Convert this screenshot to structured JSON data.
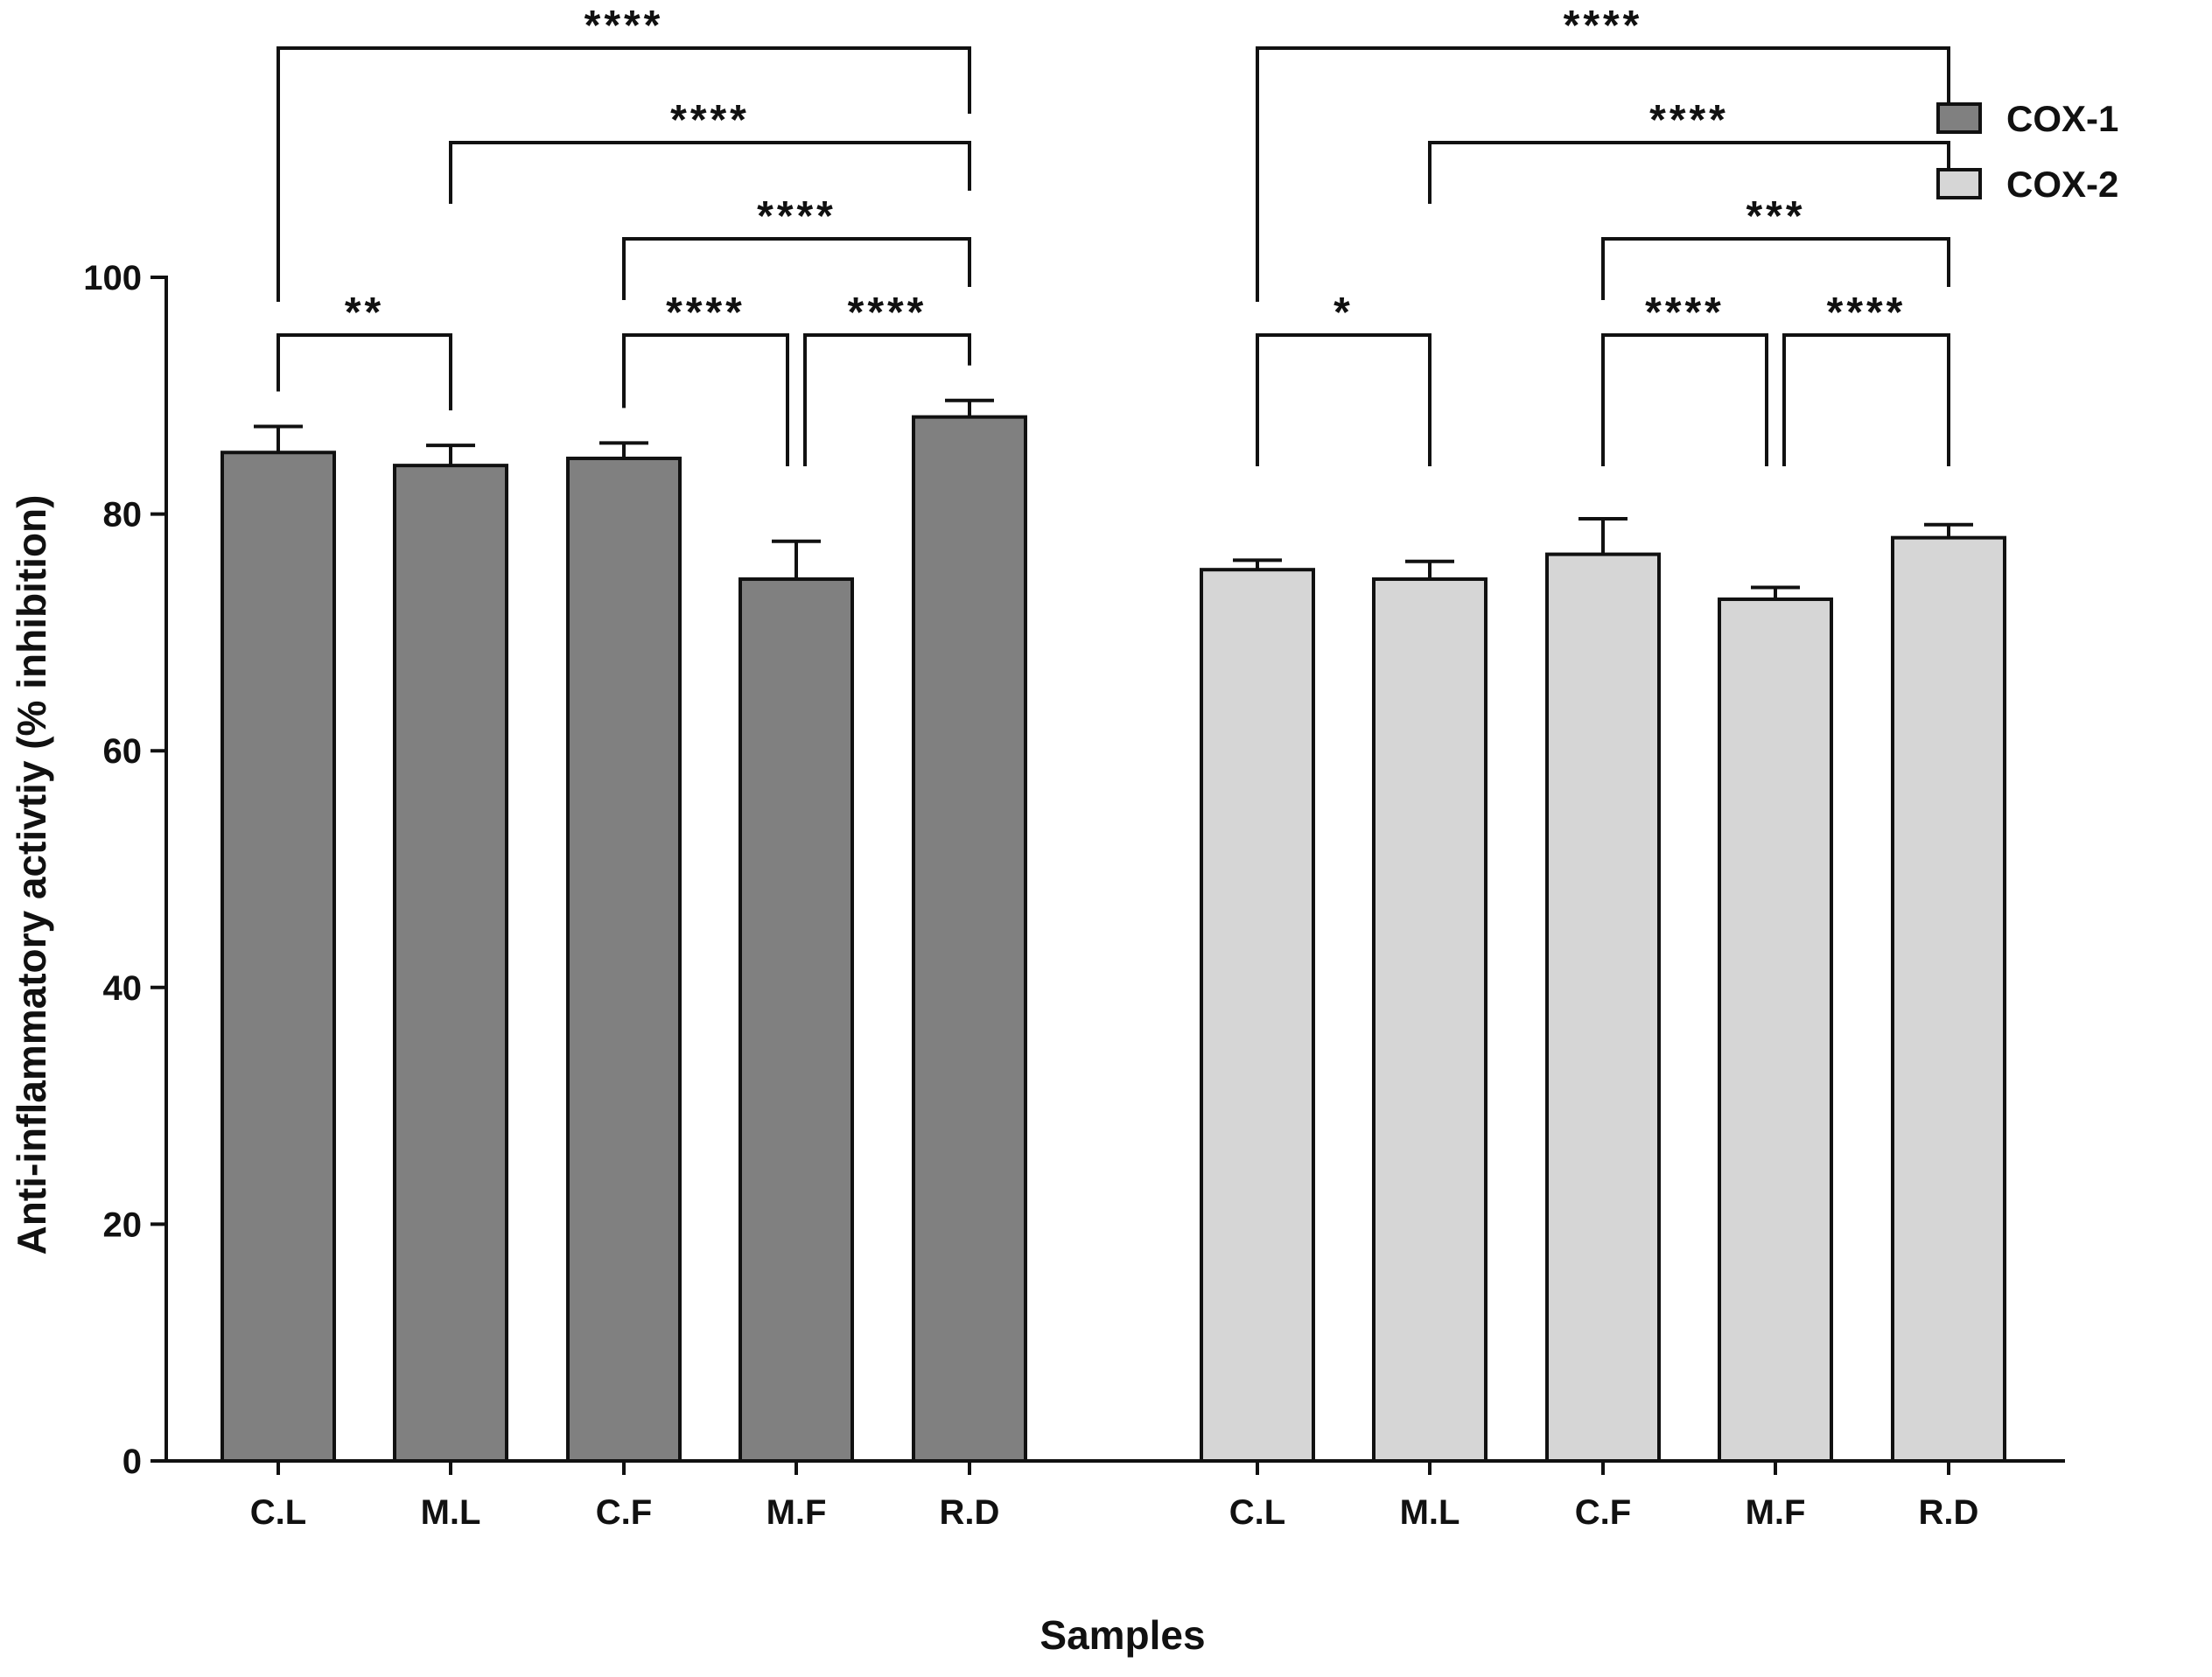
{
  "chart_data": {
    "type": "bar",
    "xlabel": "Samples",
    "ylabel": "Anti-inflammatory activtiy (% inhibition)",
    "ylim": [
      0,
      100
    ],
    "yticks": [
      0,
      20,
      40,
      60,
      80,
      100
    ],
    "categories": [
      "C.L",
      "M.L",
      "C.F",
      "M.F",
      "R.D"
    ],
    "legend_position": "top-right",
    "series": [
      {
        "name": "COX-1",
        "color": "#808080",
        "values": [
          85.2,
          84.1,
          84.7,
          74.5,
          88.2
        ],
        "errors": [
          2.2,
          1.7,
          1.3,
          3.2,
          1.4
        ],
        "comparisons": [
          {
            "from": "C.L",
            "to": "R.D",
            "label": "****"
          },
          {
            "from": "M.L",
            "to": "R.D",
            "label": "****"
          },
          {
            "from": "C.F",
            "to": "R.D",
            "label": "****"
          },
          {
            "from": "C.L",
            "to": "M.L",
            "label": "**"
          },
          {
            "from": "C.F",
            "to": "M.F",
            "label": "****"
          },
          {
            "from": "M.F",
            "to": "R.D",
            "label": "****"
          }
        ]
      },
      {
        "name": "COX-2",
        "color": "#d6d6d6",
        "values": [
          75.3,
          74.5,
          76.6,
          72.8,
          78.0
        ],
        "errors": [
          0.8,
          1.5,
          3.0,
          1.0,
          1.1
        ],
        "comparisons": [
          {
            "from": "C.L",
            "to": "R.D",
            "label": "****"
          },
          {
            "from": "M.L",
            "to": "R.D",
            "label": "****"
          },
          {
            "from": "C.F",
            "to": "R.D",
            "label": "***"
          },
          {
            "from": "C.L",
            "to": "M.L",
            "label": "*"
          },
          {
            "from": "C.F",
            "to": "M.F",
            "label": "****"
          },
          {
            "from": "M.F",
            "to": "R.D",
            "label": "****"
          }
        ]
      }
    ]
  }
}
